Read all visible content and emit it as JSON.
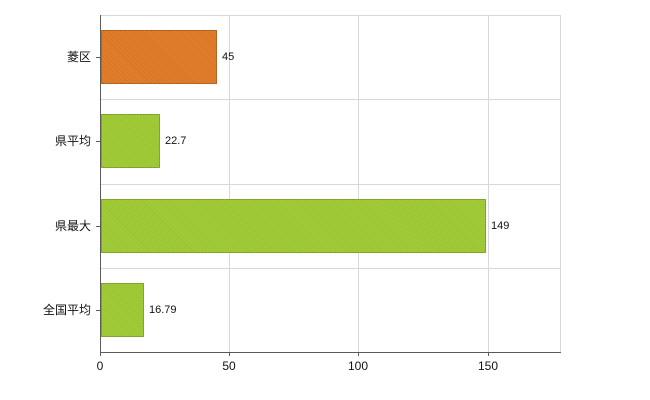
{
  "chart_data": {
    "type": "bar",
    "orientation": "horizontal",
    "title": "",
    "xlabel": "",
    "ylabel": "",
    "categories": [
      "菱区",
      "県平均",
      "県最大",
      "全国平均"
    ],
    "values": [
      45,
      22.7,
      149,
      16.79
    ],
    "value_labels": [
      "45",
      "22.7",
      "149",
      "16.79"
    ],
    "bar_colors": [
      "#e0761e",
      "#9cca2c",
      "#9cca2c",
      "#9cca2c"
    ],
    "xlim": [
      0,
      178
    ],
    "x_ticks": [
      0,
      50,
      100,
      150
    ],
    "x_tick_labels": [
      "0",
      "50",
      "100",
      "150"
    ],
    "grid": "vertical-and-band-boundaries",
    "legend": "none"
  },
  "colors": {
    "background": "#ffffff",
    "axis": "#5a5a5a",
    "gridline": "#d8d8d8",
    "text": "#111111",
    "orange_bar": "#e0761e",
    "green_bar": "#9cca2c"
  }
}
